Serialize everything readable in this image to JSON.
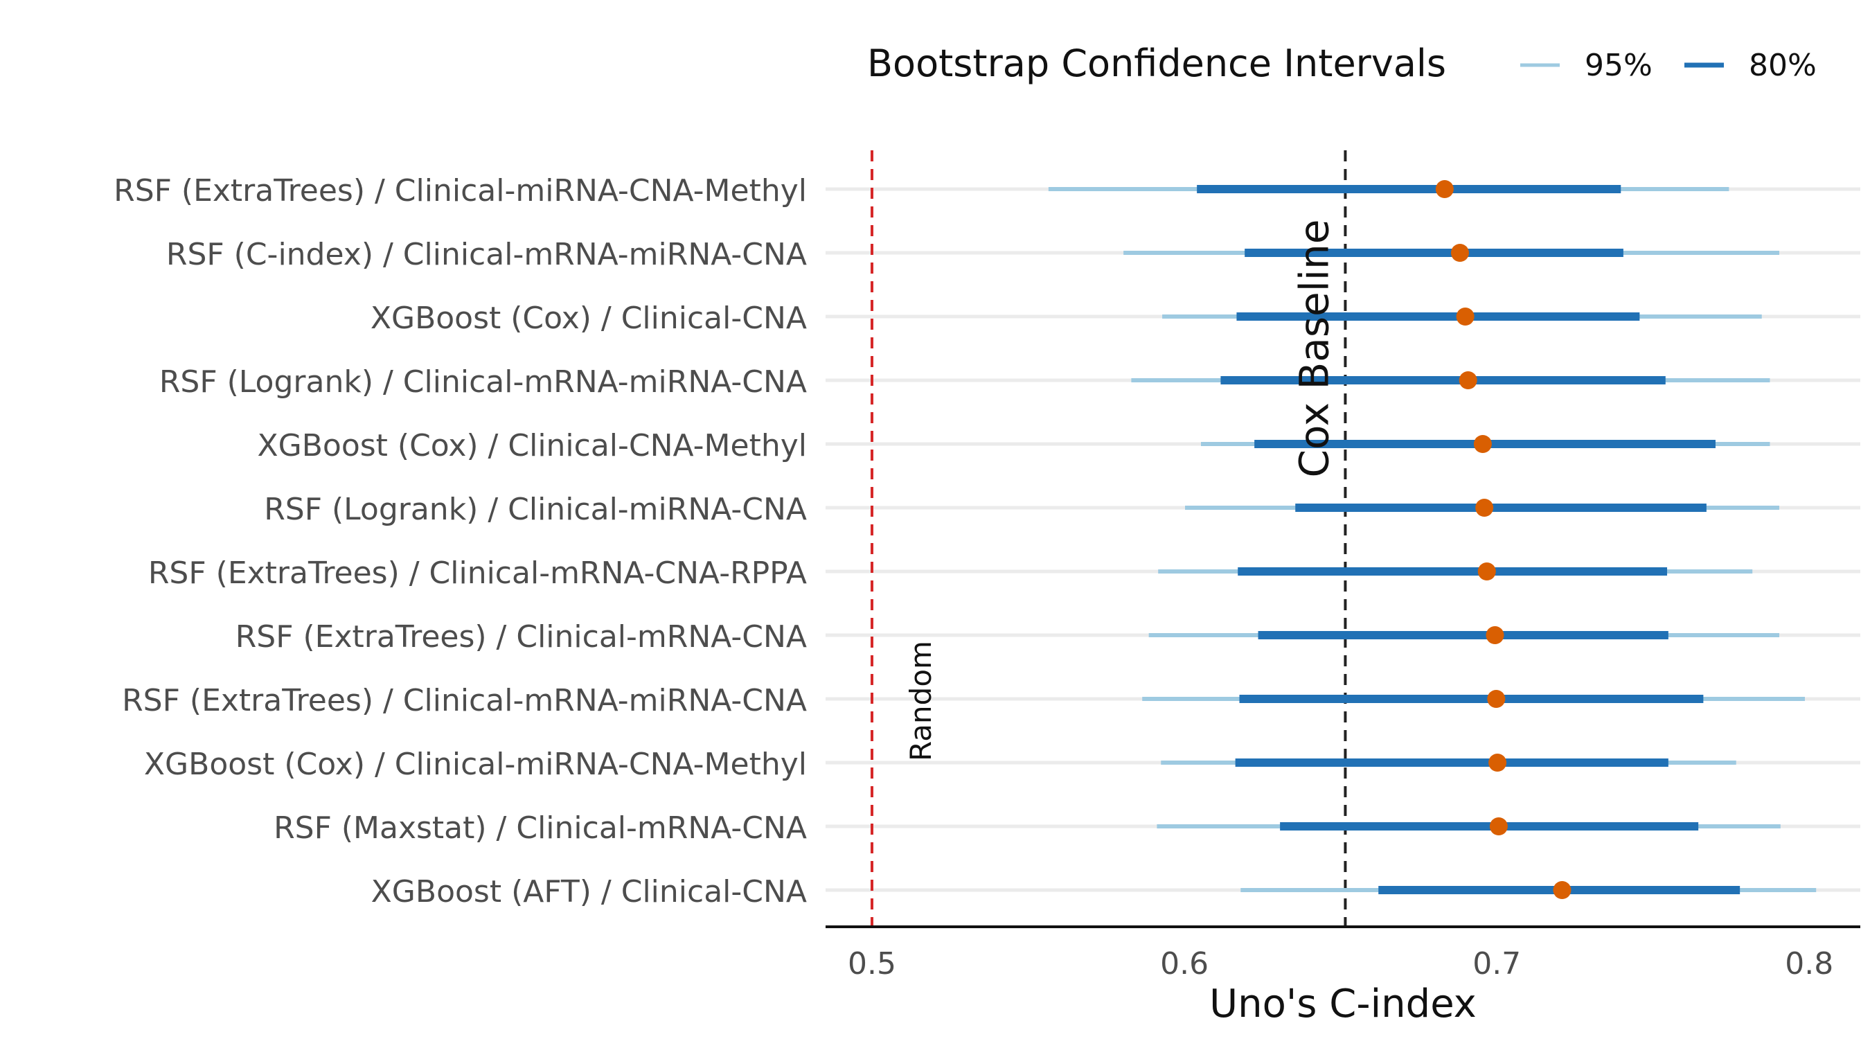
{
  "chart_data": {
    "type": "forest",
    "xlabel": "Uno's C-index",
    "xlim": [
      0.486,
      0.8175
    ],
    "xticks": [
      0.5,
      0.6,
      0.7,
      0.8
    ],
    "xtick_labels": [
      "0.5",
      "0.6",
      "0.7",
      "0.8"
    ],
    "grid": "horizontal",
    "legend": {
      "title": "Bootstrap Confidence Intervals",
      "placement": "top-right",
      "entries": [
        {
          "label": "95%",
          "color": "#9ecae1"
        },
        {
          "label": "80%",
          "color": "#2171b5"
        }
      ]
    },
    "reference_lines": [
      {
        "label": "Random",
        "x": 0.5,
        "color": "#d62728",
        "style": "dashed"
      },
      {
        "label": "Cox Baseline",
        "x": 0.6515,
        "color": "#222222",
        "style": "dashed"
      }
    ],
    "point_color": "#d95f02",
    "rows": [
      {
        "label": "RSF (ExtraTrees) / Clinical-miRNA-CNA-Methyl",
        "estimate": 0.6833,
        "ci95": [
          0.5565,
          0.7743
        ],
        "ci80": [
          0.604,
          0.7397
        ]
      },
      {
        "label": "RSF (C-index) / Clinical-mRNA-miRNA-CNA",
        "estimate": 0.6882,
        "ci95": [
          0.5805,
          0.7904
        ],
        "ci80": [
          0.6193,
          0.7405
        ]
      },
      {
        "label": "XGBoost (Cox) / Clinical-CNA",
        "estimate": 0.6899,
        "ci95": [
          0.5929,
          0.7848
        ],
        "ci80": [
          0.6167,
          0.7457
        ]
      },
      {
        "label": "RSF (Logrank) / Clinical-mRNA-miRNA-CNA",
        "estimate": 0.6908,
        "ci95": [
          0.583,
          0.7874
        ],
        "ci80": [
          0.6116,
          0.754
        ]
      },
      {
        "label": "XGBoost (Cox) / Clinical-CNA-Methyl",
        "estimate": 0.6955,
        "ci95": [
          0.6053,
          0.7874
        ],
        "ci80": [
          0.6224,
          0.77
        ]
      },
      {
        "label": "RSF (Logrank) / Clinical-miRNA-CNA",
        "estimate": 0.696,
        "ci95": [
          0.6002,
          0.7904
        ],
        "ci80": [
          0.6355,
          0.7671
        ]
      },
      {
        "label": "RSF (ExtraTrees) / Clinical-mRNA-CNA-RPPA",
        "estimate": 0.6968,
        "ci95": [
          0.5916,
          0.7818
        ],
        "ci80": [
          0.6171,
          0.7545
        ]
      },
      {
        "label": "RSF (ExtraTrees) / Clinical-mRNA-CNA",
        "estimate": 0.6994,
        "ci95": [
          0.5886,
          0.7904
        ],
        "ci80": [
          0.6236,
          0.7549
        ]
      },
      {
        "label": "RSF (ExtraTrees) / Clinical-mRNA-miRNA-CNA",
        "estimate": 0.6998,
        "ci95": [
          0.5865,
          0.7986
        ],
        "ci80": [
          0.6176,
          0.7661
        ]
      },
      {
        "label": "XGBoost (Cox) / Clinical-miRNA-CNA-Methyl",
        "estimate": 0.7002,
        "ci95": [
          0.5925,
          0.7766
        ],
        "ci80": [
          0.6163,
          0.7549
        ]
      },
      {
        "label": "RSF (Maxstat) / Clinical-mRNA-CNA",
        "estimate": 0.7006,
        "ci95": [
          0.5912,
          0.7908
        ],
        "ci80": [
          0.6306,
          0.7645
        ]
      },
      {
        "label": "XGBoost (AFT) / Clinical-CNA",
        "estimate": 0.7209,
        "ci95": [
          0.618,
          0.8022
        ],
        "ci80": [
          0.6621,
          0.7778
        ]
      }
    ]
  }
}
